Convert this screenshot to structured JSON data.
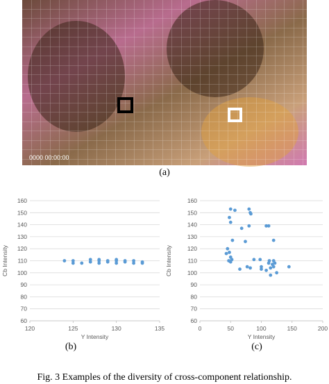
{
  "photo": {
    "timestamp": "0000 00:00:00",
    "label": "(a)"
  },
  "chart_data": [
    {
      "type": "scatter",
      "label": "(b)",
      "x_label": "Y Intensity",
      "y_label": "Cb Intensity",
      "color": "#5b9bd5",
      "grid": true,
      "x": [
        124,
        125,
        125,
        126,
        127,
        127,
        128,
        128,
        128,
        129,
        129,
        130,
        130,
        130,
        131,
        131,
        132,
        132,
        133,
        133
      ],
      "y": [
        110,
        108,
        110,
        108,
        109,
        111,
        108,
        110,
        111,
        109,
        110,
        108,
        110,
        111,
        109,
        110,
        108,
        110,
        108,
        109
      ],
      "xlim": [
        120,
        135
      ],
      "xticks": [
        120,
        125,
        130,
        135
      ],
      "ylim": [
        60,
        160
      ],
      "yticks": [
        60,
        70,
        80,
        90,
        100,
        110,
        120,
        130,
        140,
        150,
        160
      ]
    },
    {
      "type": "scatter",
      "label": "(c)",
      "x_label": "Y Intensity",
      "y_label": "Cb Intensity",
      "color": "#5b9bd5",
      "grid": true,
      "x": [
        50,
        57,
        48,
        50,
        68,
        80,
        82,
        83,
        80,
        53,
        74,
        108,
        112,
        120,
        45,
        43,
        48,
        50,
        52,
        47,
        50,
        65,
        77,
        82,
        88,
        98,
        100,
        100,
        108,
        113,
        115,
        118,
        120,
        120,
        122,
        125,
        115,
        145,
        112
      ],
      "y": [
        153,
        152,
        146,
        142,
        137,
        153,
        150,
        149,
        139,
        127,
        126,
        139,
        139,
        127,
        120,
        116,
        117,
        113,
        111,
        110,
        109,
        103,
        105,
        104,
        111,
        111,
        103,
        105,
        102,
        110,
        104,
        107,
        110,
        105,
        108,
        100,
        98,
        105,
        108
      ],
      "xlim": [
        0,
        200
      ],
      "xticks": [
        0,
        50,
        100,
        150,
        200
      ],
      "ylim": [
        60,
        160
      ],
      "yticks": [
        60,
        70,
        80,
        90,
        100,
        110,
        120,
        130,
        140,
        150,
        160
      ]
    }
  ],
  "caption": "Fig. 3 Examples of the diversity of cross-component relationship."
}
